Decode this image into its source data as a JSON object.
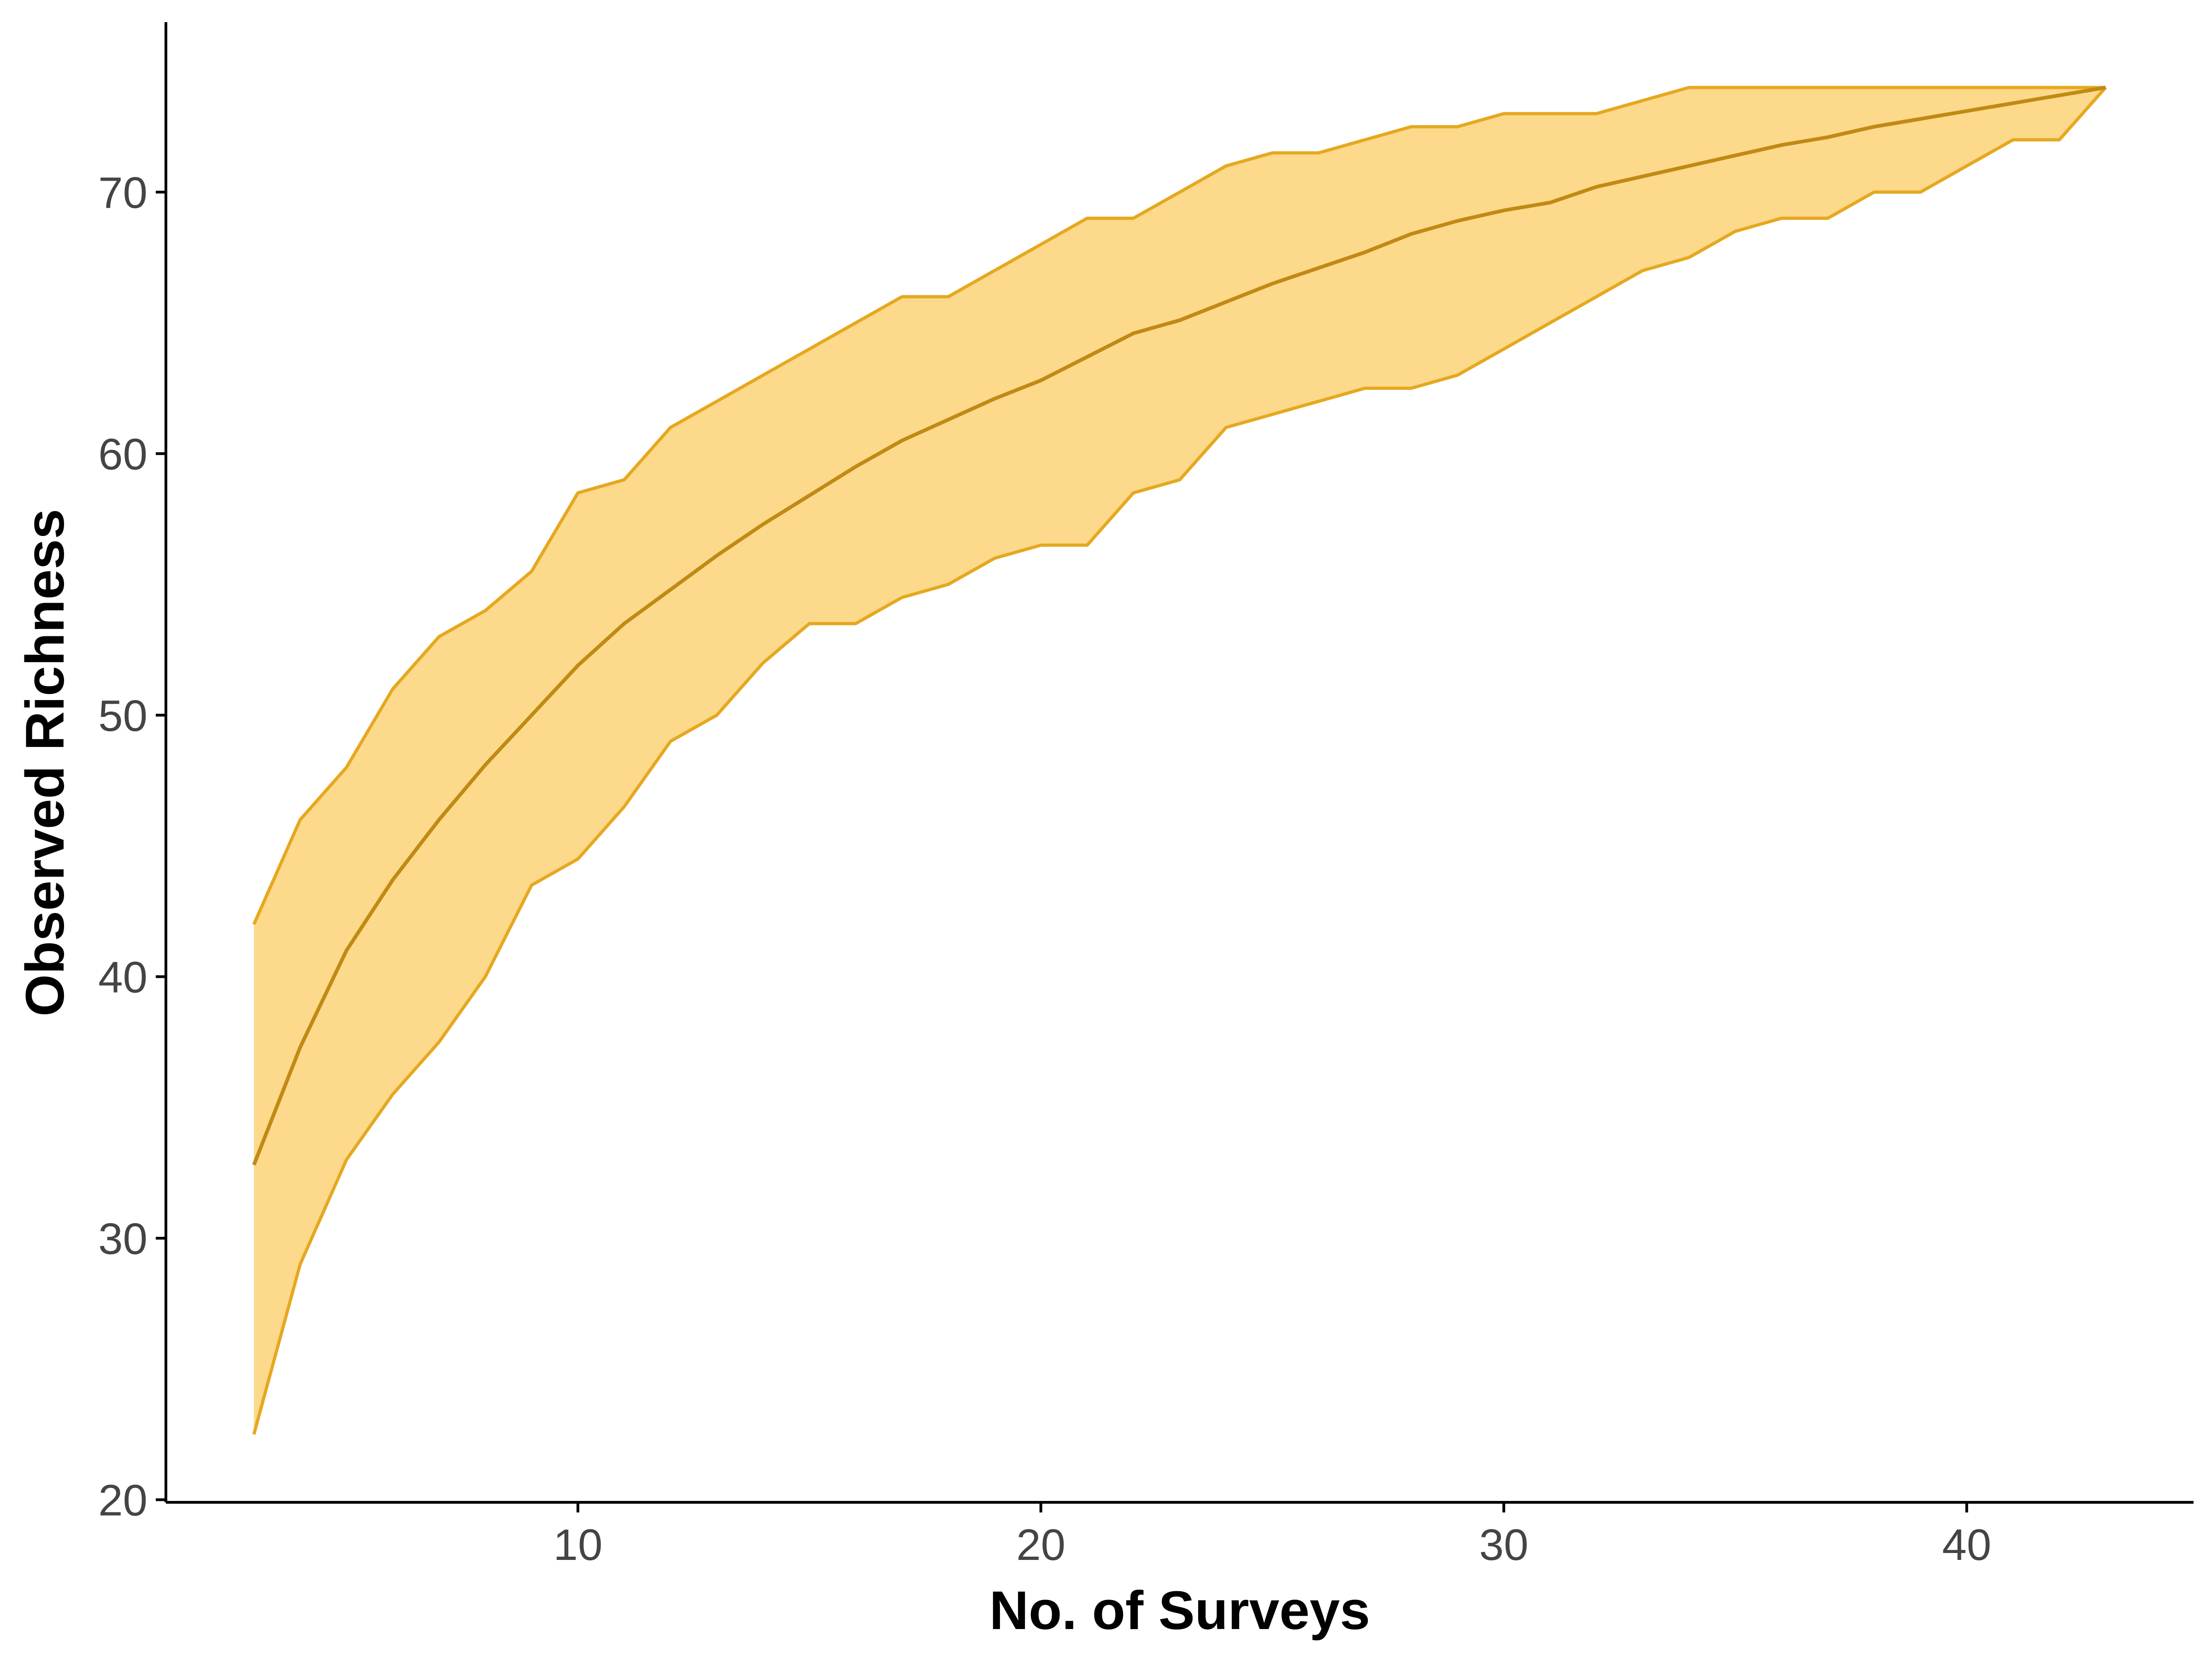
{
  "chart_data": {
    "type": "area",
    "xlabel": "No. of Surveys",
    "ylabel": "Observed Richness",
    "xlim": [
      1.1,
      44.9
    ],
    "ylim": [
      19.9,
      76.5
    ],
    "x_ticks": [
      10,
      20,
      30,
      40
    ],
    "y_ticks": [
      20,
      30,
      40,
      50,
      60,
      70
    ],
    "grid": false,
    "legend": "none",
    "colors": {
      "band_fill": "#FDD98C",
      "band_edge": "#E5A81F",
      "mean_line": "#C08A14",
      "axis": "#000000"
    },
    "series": [
      {
        "x": [
          3,
          4,
          5,
          6,
          7,
          8,
          9,
          10,
          11,
          12,
          13,
          14,
          15,
          16,
          17,
          18,
          19,
          20,
          21,
          22,
          23,
          24,
          25,
          26,
          27,
          28,
          29,
          30,
          31,
          32,
          33,
          34,
          35,
          36,
          37,
          38,
          39,
          40,
          41,
          42,
          43
        ],
        "mean": [
          32.8,
          37.3,
          41.0,
          43.7,
          46.0,
          48.1,
          50.0,
          51.9,
          53.5,
          54.8,
          56.1,
          57.3,
          58.4,
          59.5,
          60.5,
          61.3,
          62.1,
          62.8,
          63.7,
          64.6,
          65.1,
          65.8,
          66.5,
          67.1,
          67.7,
          68.4,
          68.9,
          69.3,
          69.6,
          70.2,
          70.6,
          71.0,
          71.4,
          71.8,
          72.1,
          72.5,
          72.8,
          73.1,
          73.4,
          73.7,
          74.0
        ],
        "lower": [
          22.5,
          29.0,
          33.0,
          35.5,
          37.5,
          40.0,
          43.5,
          44.5,
          46.5,
          49.0,
          50.0,
          52.0,
          53.5,
          53.5,
          54.5,
          55.0,
          56.0,
          56.5,
          56.5,
          58.5,
          59.0,
          61.0,
          61.5,
          62.0,
          62.5,
          62.5,
          63.0,
          64.0,
          65.0,
          66.0,
          67.0,
          67.5,
          68.5,
          69.0,
          69.0,
          70.0,
          70.0,
          71.0,
          72.0,
          72.0,
          74.0
        ],
        "upper": [
          42.0,
          46.0,
          48.0,
          51.0,
          53.0,
          54.0,
          55.5,
          58.5,
          59.0,
          61.0,
          62.0,
          63.0,
          64.0,
          65.0,
          66.0,
          66.0,
          67.0,
          68.0,
          69.0,
          69.0,
          70.0,
          71.0,
          71.5,
          71.5,
          72.0,
          72.5,
          72.5,
          73.0,
          73.0,
          73.0,
          73.5,
          74.0,
          74.0,
          74.0,
          74.0,
          74.0,
          74.0,
          74.0,
          74.0,
          74.0,
          74.0
        ]
      }
    ]
  }
}
